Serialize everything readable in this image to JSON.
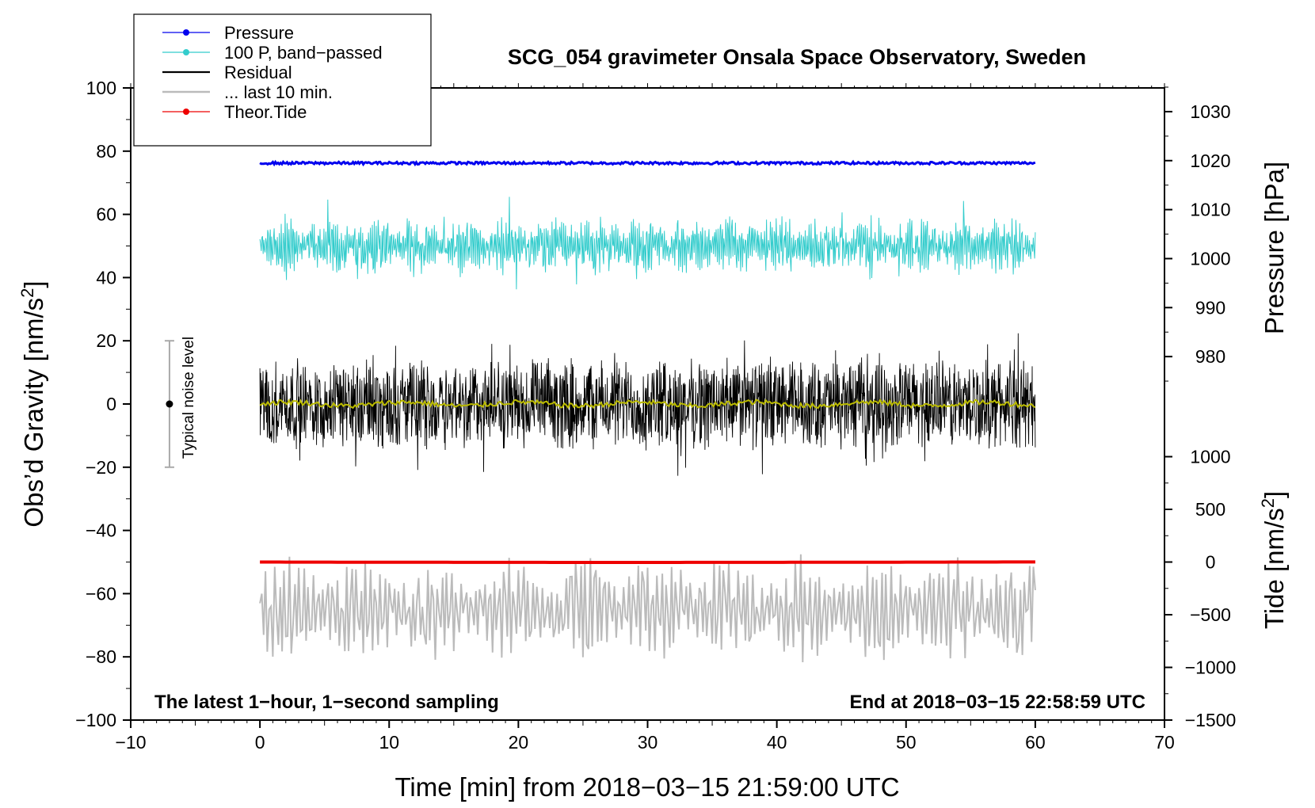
{
  "chart_data": {
    "type": "line",
    "title": "SCG_054 gravimeter Onsala Space Observatory, Sweden",
    "xlabel": "Time [min] from 2018−03−15 21:59:00 UTC",
    "ylabel_left": "Obs’d Gravity [nm/s",
    "ylabel_left_sup": "2",
    "ylabel_left_end": "]",
    "ylabel_right_pressure": "Pressure [hPa]",
    "ylabel_right_tide": "Tide [nm/s",
    "ylabel_right_tide_sup": "2",
    "ylabel_right_tide_end": "]",
    "xlim": [
      -10,
      70
    ],
    "ylim": [
      -100,
      100
    ],
    "x_ticks": [
      "−10",
      "0",
      "10",
      "20",
      "30",
      "40",
      "50",
      "60",
      "70"
    ],
    "x_tick_values": [
      -10,
      0,
      10,
      20,
      30,
      40,
      50,
      60,
      70
    ],
    "y_ticks": [
      "100",
      "80",
      "60",
      "40",
      "20",
      "0",
      "−20",
      "−40",
      "−60",
      "−80",
      "−100"
    ],
    "y_tick_values": [
      100,
      80,
      60,
      40,
      20,
      0,
      -20,
      -40,
      -60,
      -80,
      -100
    ],
    "pressure_axis": {
      "ticks": [
        "1030",
        "1020",
        "1010",
        "1000",
        "990",
        "980"
      ],
      "tick_values": [
        1030,
        1020,
        1010,
        1000,
        990,
        980
      ],
      "gravity_equiv_at_1030": 92.5,
      "gravity_per_hpa": 1.55
    },
    "tide_axis": {
      "ticks": [
        "1000",
        "500",
        "0",
        "−500",
        "−1000",
        "−1500"
      ],
      "tick_values": [
        1000,
        500,
        0,
        -500,
        -1000,
        -1500
      ],
      "gravity_equiv_at_0": -50,
      "gravity_per_unit": 0.03333
    },
    "series": [
      {
        "name": "Pressure",
        "color": "#0000ee",
        "level_hpa": 1019.5,
        "noise": 0.25
      },
      {
        "name": "100 P, band−passed",
        "color": "#33cccc",
        "center": 50,
        "amplitude": 9
      },
      {
        "name": "Residual",
        "color": "#000000",
        "center": 0,
        "amplitude": 14
      },
      {
        "name": "... last 10 min.",
        "color": "#bbbbbb",
        "center": -65,
        "amplitude": 15
      },
      {
        "name": "Theor.Tide",
        "color": "#ee0000",
        "start": 0,
        "end": 1
      }
    ],
    "smoothed_residual_color": "#bbbb00",
    "x_start": 0,
    "x_end": 60,
    "noise_level": {
      "label": "Typical noise level",
      "x": -7,
      "center": 0,
      "half_range": 20
    },
    "annotation_left": "The latest 1−hour, 1−second sampling",
    "annotation_right": "End at 2018−03−15 22:58:59 UTC",
    "legend_position": "top-left"
  }
}
